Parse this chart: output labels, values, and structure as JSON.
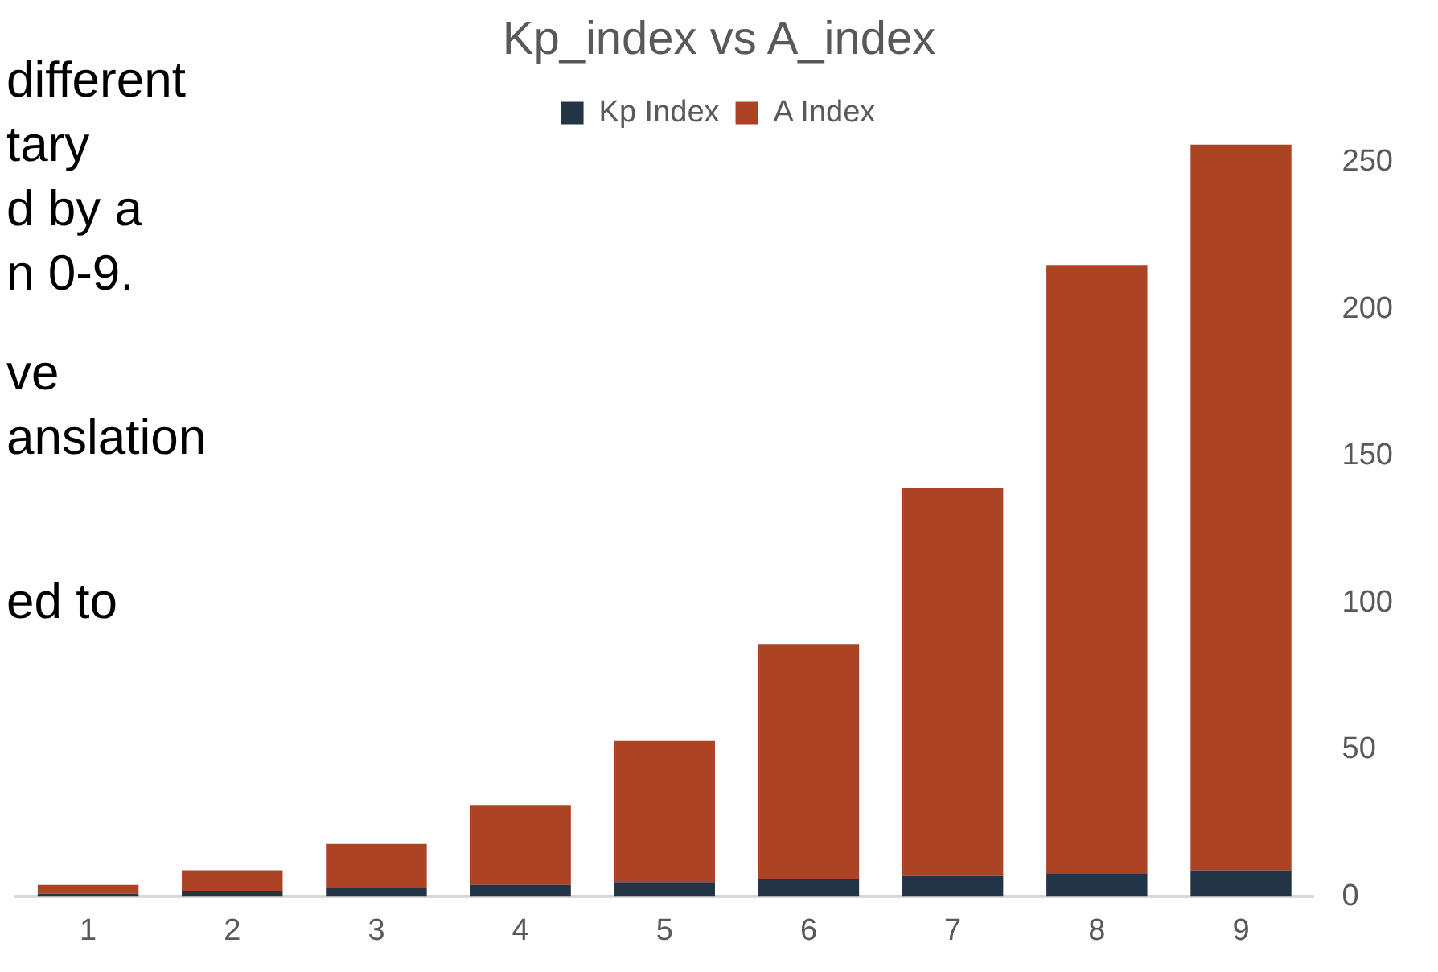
{
  "chart_data": {
    "type": "bar",
    "title": "Kp_index vs A_index",
    "categories": [
      "1",
      "2",
      "3",
      "4",
      "5",
      "6",
      "7",
      "8",
      "9"
    ],
    "stacked": true,
    "series": [
      {
        "name": "Kp Index",
        "color": "#243447",
        "values": [
          1,
          2,
          3,
          4,
          5,
          6,
          7,
          8,
          9
        ]
      },
      {
        "name": "A Index",
        "color": "#ac4325",
        "values": [
          3,
          7,
          15,
          27,
          48,
          80,
          132,
          207,
          247
        ]
      }
    ],
    "ylim": [
      0,
      256
    ],
    "yticks": [
      0,
      50,
      100,
      150,
      200,
      250
    ],
    "grid": false,
    "legend": "top",
    "annotations": [
      "different",
      "tary",
      "d by a",
      "n 0-9.",
      "ve",
      "anslation",
      "ed to"
    ]
  }
}
